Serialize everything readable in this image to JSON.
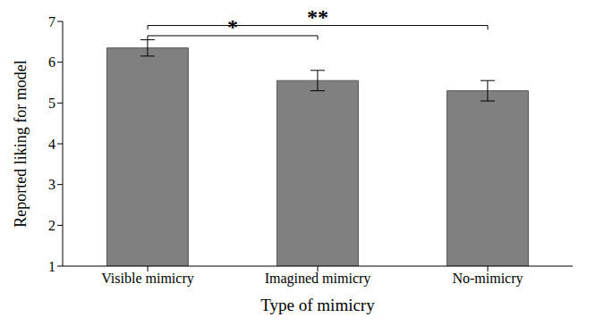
{
  "chart_data": {
    "type": "bar",
    "categories": [
      "Visible mimicry",
      "Imagined mimicry",
      "No-mimicry"
    ],
    "values": [
      6.35,
      5.55,
      5.3
    ],
    "errors": [
      0.2,
      0.25,
      0.25
    ],
    "color": "#808080",
    "x_label": "Type of mimicry",
    "y_label": "Reported liking for model",
    "ylim": [
      1,
      7
    ],
    "yticks": [
      1,
      2,
      3,
      4,
      5,
      6,
      7
    ],
    "grid": false,
    "annotations": [
      {
        "text": "*",
        "from": "Visible mimicry",
        "to": "Imagined mimicry"
      },
      {
        "text": "**",
        "from": "Visible mimicry",
        "to": "No-mimicry"
      }
    ]
  }
}
